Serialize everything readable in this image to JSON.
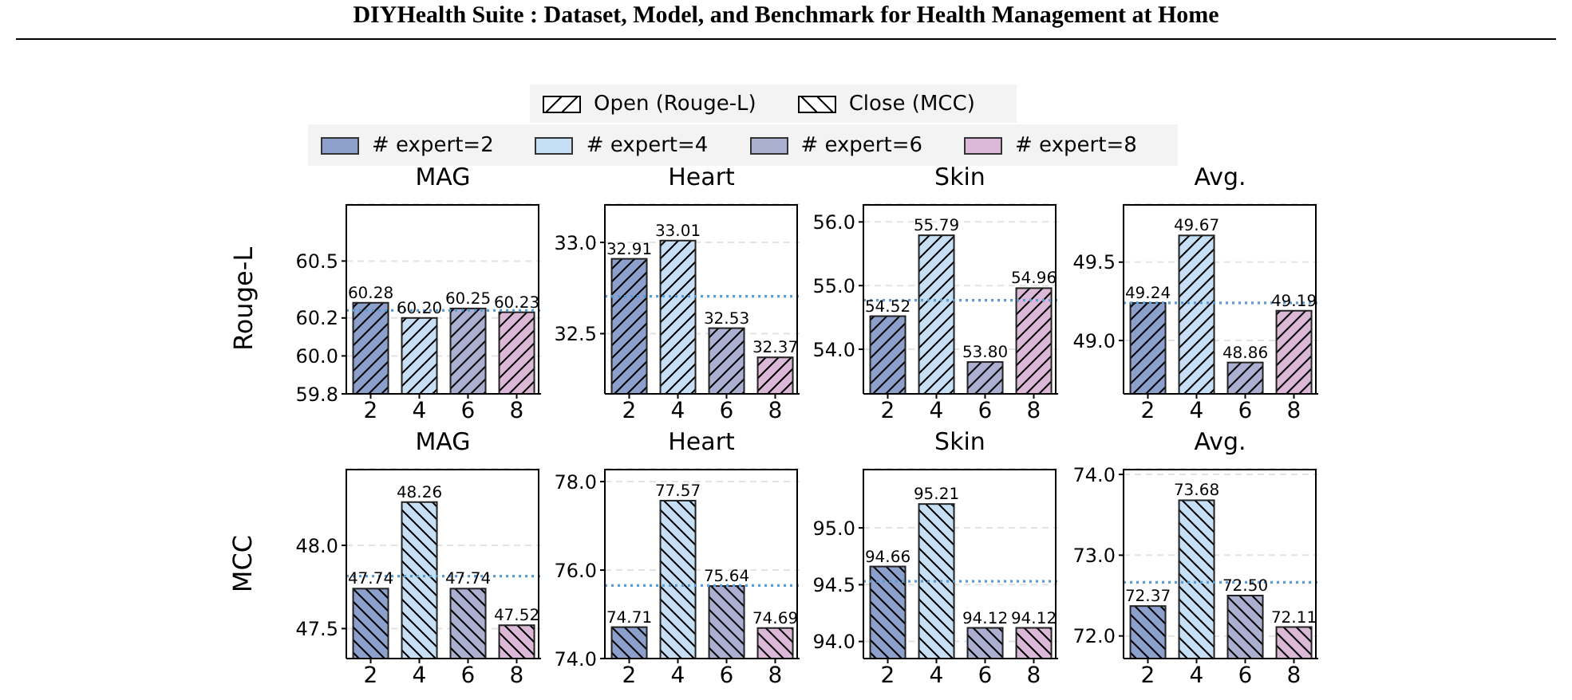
{
  "chart_data": [
    {
      "type": "other",
      "title": "DIYHealth Suite : Dataset, Model, and Benchmark for Health Management at Home",
      "annotations": [
        "Open (Rouge-L)",
        "Close (MCC)",
        "# expert=2",
        "# expert=4",
        "# expert=6",
        "# expert=8"
      ]
    },
    {
      "type": "bar",
      "title": "MAG",
      "ylabel": "Rouge-L",
      "categories": [
        "2",
        "4",
        "6",
        "8"
      ],
      "values": [
        60.28,
        60.2,
        60.25,
        60.23
      ],
      "value_labels": [
        "60.28",
        "60.20",
        "60.25",
        "60.23"
      ],
      "colors": [
        "#8da0cb",
        "#c6dff4",
        "#abb0d1",
        "#dbb8d6"
      ],
      "ylim": [
        59.8,
        60.8
      ],
      "yticks": [
        59.8,
        {
          "value": 60,
          "label": "60.0"
        },
        60.2,
        60.5
      ],
      "grid": "y",
      "ref_lines": [
        {
          "axis": "y",
          "value": 60.24,
          "color": "#5b9bd5",
          "line_style": "dotted"
        }
      ]
    },
    {
      "type": "bar",
      "title": "Heart",
      "categories": [
        "2",
        "4",
        "6",
        "8"
      ],
      "values": [
        32.91,
        33.01,
        32.53,
        32.37
      ],
      "value_labels": [
        "32.91",
        "33.01",
        "32.53",
        "32.37"
      ],
      "colors": [
        "#8da0cb",
        "#c6dff4",
        "#abb0d1",
        "#dbb8d6"
      ],
      "ylim": [
        32.17,
        33.21
      ],
      "yticks": [
        32.5,
        {
          "value": 33,
          "label": "33.0"
        }
      ],
      "grid": "y",
      "ref_lines": [
        {
          "axis": "y",
          "value": 32.705,
          "color": "#5b9bd5",
          "line_style": "dotted"
        }
      ]
    },
    {
      "type": "bar",
      "title": "Skin",
      "categories": [
        "2",
        "4",
        "6",
        "8"
      ],
      "values": [
        54.52,
        55.79,
        53.8,
        54.96
      ],
      "value_labels": [
        "54.52",
        "55.79",
        "53.80",
        "54.96"
      ],
      "colors": [
        "#8da0cb",
        "#c6dff4",
        "#abb0d1",
        "#dbb8d6"
      ],
      "ylim": [
        53.3,
        56.28
      ],
      "yticks": [
        {
          "value": 54,
          "label": "54.0"
        },
        {
          "value": 55,
          "label": "55.0"
        },
        {
          "value": 56,
          "label": "56.0"
        }
      ],
      "grid": "y",
      "ref_lines": [
        {
          "axis": "y",
          "value": 54.77,
          "color": "#5b9bd5",
          "line_style": "dotted"
        }
      ]
    },
    {
      "type": "bar",
      "title": "Avg.",
      "categories": [
        "2",
        "4",
        "6",
        "8"
      ],
      "values": [
        49.24,
        49.67,
        48.86,
        49.19
      ],
      "value_labels": [
        "49.24",
        "49.67",
        "48.86",
        "49.19"
      ],
      "colors": [
        "#8da0cb",
        "#c6dff4",
        "#abb0d1",
        "#dbb8d6"
      ],
      "ylim": [
        48.66,
        49.87
      ],
      "yticks": [
        {
          "value": 49,
          "label": "49.0"
        },
        49.5
      ],
      "grid": "y",
      "ref_lines": [
        {
          "axis": "y",
          "value": 49.24,
          "color": "#5b9bd5",
          "line_style": "dotted"
        }
      ]
    },
    {
      "type": "bar",
      "title": "MAG",
      "ylabel": "MCC",
      "categories": [
        "2",
        "4",
        "6",
        "8"
      ],
      "values": [
        47.74,
        48.26,
        47.74,
        47.52
      ],
      "value_labels": [
        "47.74",
        "48.26",
        "47.74",
        "47.52"
      ],
      "colors": [
        "#8da0cb",
        "#c6dff4",
        "#abb0d1",
        "#dbb8d6"
      ],
      "ylim": [
        47.32,
        48.46
      ],
      "yticks": [
        47.5,
        {
          "value": 48,
          "label": "48.0"
        }
      ],
      "grid": "y",
      "ref_lines": [
        {
          "axis": "y",
          "value": 47.815,
          "color": "#5b9bd5",
          "line_style": "dotted"
        }
      ]
    },
    {
      "type": "bar",
      "title": "Heart",
      "categories": [
        "2",
        "4",
        "6",
        "8"
      ],
      "values": [
        74.71,
        77.57,
        75.64,
        74.69
      ],
      "value_labels": [
        "74.71",
        "77.57",
        "75.64",
        "74.69"
      ],
      "colors": [
        "#8da0cb",
        "#c6dff4",
        "#abb0d1",
        "#dbb8d6"
      ],
      "ylim": [
        74,
        78.29
      ],
      "yticks": [
        {
          "value": 74,
          "label": "74.0"
        },
        {
          "value": 76,
          "label": "76.0"
        },
        {
          "value": 78,
          "label": "78.0"
        }
      ],
      "grid": "y",
      "ref_lines": [
        {
          "axis": "y",
          "value": 75.65,
          "color": "#5b9bd5",
          "line_style": "dotted"
        }
      ]
    },
    {
      "type": "bar",
      "title": "Skin",
      "categories": [
        "2",
        "4",
        "6",
        "8"
      ],
      "values": [
        94.66,
        95.21,
        94.12,
        94.12
      ],
      "value_labels": [
        "94.66",
        "95.21",
        "94.12",
        "94.12"
      ],
      "colors": [
        "#8da0cb",
        "#c6dff4",
        "#abb0d1",
        "#dbb8d6"
      ],
      "ylim": [
        93.85,
        95.52
      ],
      "yticks": [
        {
          "value": 94,
          "label": "94.0"
        },
        94.5,
        {
          "value": 95,
          "label": "95.0"
        }
      ],
      "grid": "y",
      "ref_lines": [
        {
          "axis": "y",
          "value": 94.53,
          "color": "#5b9bd5",
          "line_style": "dotted"
        }
      ]
    },
    {
      "type": "bar",
      "title": "Avg.",
      "categories": [
        "2",
        "4",
        "6",
        "8"
      ],
      "values": [
        72.37,
        73.68,
        72.5,
        72.11
      ],
      "value_labels": [
        "72.37",
        "73.68",
        "72.50",
        "72.11"
      ],
      "colors": [
        "#8da0cb",
        "#c6dff4",
        "#abb0d1",
        "#dbb8d6"
      ],
      "ylim": [
        71.72,
        74.07
      ],
      "yticks": [
        {
          "value": 72,
          "label": "72.0"
        },
        {
          "value": 73,
          "label": "73.0"
        },
        {
          "value": 74,
          "label": "74.0"
        }
      ],
      "grid": "y",
      "ref_lines": [
        {
          "axis": "y",
          "value": 72.665,
          "color": "#5b9bd5",
          "line_style": "dotted"
        }
      ]
    }
  ]
}
